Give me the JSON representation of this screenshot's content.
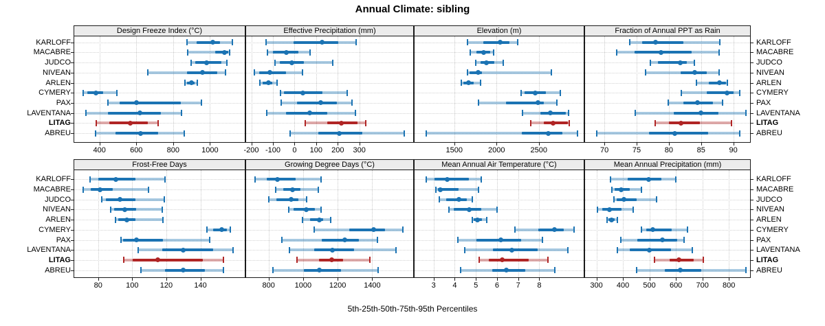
{
  "title": "Annual Climate: sibling",
  "caption": "5th-25th-50th-75th-95th Percentiles",
  "colors": {
    "sibling_blue": "#1b73b3",
    "target_red": "#b02525",
    "strip_bg": "#ececec",
    "grid_gray": "#c9c9c9",
    "panel_border": "#1a1a1a"
  },
  "stations": [
    {
      "name": "KARLOFF",
      "target": false
    },
    {
      "name": "MACABRE",
      "target": false
    },
    {
      "name": "JUDCO",
      "target": false
    },
    {
      "name": "NIVEAN",
      "target": false
    },
    {
      "name": "ARLEN",
      "target": false
    },
    {
      "name": "CYMERY",
      "target": false
    },
    {
      "name": "PAX",
      "target": false
    },
    {
      "name": "LAVENTANA",
      "target": false
    },
    {
      "name": "LITAG",
      "target": true
    },
    {
      "name": "ABREU",
      "target": false
    }
  ],
  "chart_data": {
    "type": "scatter",
    "subtype": "percentile-interval-dotplot",
    "percentile_labels": [
      "p5",
      "p25",
      "p50",
      "p75",
      "p95"
    ],
    "legend": "rows show 5th-95th range (light), 25th-75th (dark), median dot; LITAG highlighted",
    "grid": true,
    "panels": [
      {
        "label": "Design Freeze Index (°C)",
        "grid_row": 0,
        "grid_col": 0,
        "ticks": [
          400,
          600,
          800,
          1000
        ],
        "xlim": [
          263,
          1189
        ],
        "series": [
          {
            "name": "KARLOFF",
            "values": [
              877,
              926,
              1014,
              1055,
              1121
            ]
          },
          {
            "name": "MACABRE",
            "values": [
              880,
              1030,
              1080,
              1098,
              1107
            ]
          },
          {
            "name": "JUDCO",
            "values": [
              899,
              920,
              983,
              1063,
              1093
            ]
          },
          {
            "name": "NIVEAN",
            "values": [
              664,
              874,
              960,
              1040,
              1084
            ]
          },
          {
            "name": "ARLEN",
            "values": [
              865,
              874,
              899,
              917,
              932
            ]
          },
          {
            "name": "CYMERY",
            "values": [
              312,
              335,
              380,
              421,
              495
            ]
          },
          {
            "name": "PAX",
            "values": [
              446,
              510,
              602,
              840,
              952
            ]
          },
          {
            "name": "LAVENTANA",
            "values": [
              327,
              446,
              621,
              735,
              847
            ]
          },
          {
            "name": "LITAG",
            "values": [
              384,
              454,
              568,
              664,
              717
            ]
          },
          {
            "name": "ABREU",
            "values": [
              380,
              488,
              625,
              720,
              862
            ]
          }
        ]
      },
      {
        "label": "Effective Precipitation (mm)",
        "grid_row": 0,
        "grid_col": 1,
        "ticks": [
          -200,
          -100,
          0,
          100,
          200,
          300
        ],
        "xlim": [
          -224,
          549
        ],
        "series": [
          {
            "name": "KARLOFF",
            "values": [
              -133,
              -5,
              128,
              202,
              284
            ]
          },
          {
            "name": "MACABRE",
            "values": [
              -125,
              -101,
              -38,
              17,
              73
            ]
          },
          {
            "name": "JUDCO",
            "values": [
              -90,
              -67,
              -14,
              42,
              178
            ]
          },
          {
            "name": "NIVEAN",
            "values": [
              -186,
              -162,
              -115,
              -41,
              38
            ]
          },
          {
            "name": "ARLEN",
            "values": [
              -160,
              -149,
              -120,
              -104,
              -80
            ]
          },
          {
            "name": "CYMERY",
            "values": [
              -65,
              -48,
              38,
              128,
              244
            ]
          },
          {
            "name": "PAX",
            "values": [
              -62,
              10,
              120,
              195,
              265
            ]
          },
          {
            "name": "LAVENTANA",
            "values": [
              -130,
              -41,
              70,
              152,
              283
            ]
          },
          {
            "name": "LITAG",
            "values": [
              50,
              152,
              215,
              290,
              330
            ]
          },
          {
            "name": "ABREU",
            "values": [
              -20,
              110,
              207,
              313,
              508
            ]
          }
        ]
      },
      {
        "label": "Elevation (m)",
        "grid_row": 0,
        "grid_col": 2,
        "ticks": [
          1500,
          2000,
          2500
        ],
        "xlim": [
          1030,
          3030
        ],
        "series": [
          {
            "name": "KARLOFF",
            "values": [
              1657,
              1841,
              2045,
              2153,
              2253
            ]
          },
          {
            "name": "MACABRE",
            "values": [
              1688,
              1760,
              1850,
              1921,
              1963
            ]
          },
          {
            "name": "JUDCO",
            "values": [
              1755,
              1814,
              1882,
              1977,
              2080
            ]
          },
          {
            "name": "NIVEAN",
            "values": [
              1657,
              1679,
              1779,
              1828,
              2649
            ]
          },
          {
            "name": "ARLEN",
            "values": [
              1584,
              1611,
              1671,
              1733,
              1814
            ]
          },
          {
            "name": "CYMERY",
            "values": [
              2289,
              2329,
              2459,
              2587,
              2757
            ]
          },
          {
            "name": "PAX",
            "values": [
              1787,
              2112,
              2486,
              2560,
              2709
            ]
          },
          {
            "name": "LAVENTANA",
            "values": [
              2308,
              2519,
              2633,
              2817,
              2852
            ]
          },
          {
            "name": "LITAG",
            "values": [
              2405,
              2560,
              2668,
              2845,
              2858
            ]
          },
          {
            "name": "ABREU",
            "values": [
              1169,
              2297,
              2614,
              2776,
              2953
            ]
          }
        ]
      },
      {
        "label": "Fraction of Annual PPT as Rain",
        "grid_row": 0,
        "grid_col": 3,
        "ticks": [
          70,
          75,
          80,
          85,
          90
        ],
        "xlim": [
          67,
          92.6
        ],
        "series": [
          {
            "name": "KARLOFF",
            "values": [
              73.9,
              75.8,
              77.9,
              82.2,
              87.9
            ]
          },
          {
            "name": "MACABRE",
            "values": [
              71.9,
              74.7,
              78.8,
              83.5,
              87.8
            ]
          },
          {
            "name": "JUDCO",
            "values": [
              77.1,
              78.3,
              81.8,
              82.8,
              84.0
            ]
          },
          {
            "name": "NIVEAN",
            "values": [
              76.4,
              81.8,
              84.0,
              85.9,
              87.8
            ]
          },
          {
            "name": "ARLEN",
            "values": [
              84.3,
              86.2,
              87.9,
              88.9,
              89.1
            ]
          },
          {
            "name": "CYMERY",
            "values": [
              81.9,
              85.9,
              89.0,
              90.0,
              91.0
            ]
          },
          {
            "name": "PAX",
            "values": [
              79.9,
              82.2,
              84.4,
              86.8,
              88.3
            ]
          },
          {
            "name": "LAVENTANA",
            "values": [
              74.8,
              80.8,
              85.0,
              87.7,
              92.0
            ]
          },
          {
            "name": "LITAG",
            "values": [
              77.9,
              80.0,
              81.9,
              84.8,
              89.7
            ]
          },
          {
            "name": "ABREU",
            "values": [
              68.8,
              76.9,
              80.9,
              86.1,
              91.0
            ]
          }
        ]
      },
      {
        "label": "Frost-Free Days",
        "grid_row": 1,
        "grid_col": 0,
        "ticks": [
          80,
          100,
          120,
          140
        ],
        "xlim": [
          66,
          166
        ],
        "series": [
          {
            "name": "KARLOFF",
            "values": [
              75.3,
              80,
              90.5,
              102,
              119.3
            ]
          },
          {
            "name": "MACABRE",
            "values": [
              71.3,
              75.6,
              81,
              88.4,
              109.7
            ]
          },
          {
            "name": "JUDCO",
            "values": [
              82,
              84.7,
              92.7,
              102,
              119
            ]
          },
          {
            "name": "NIVEAN",
            "values": [
              87.3,
              89.3,
              95.6,
              102.3,
              117.7
            ]
          },
          {
            "name": "ARLEN",
            "values": [
              90.3,
              92,
              96.7,
              101.7,
              118
            ]
          },
          {
            "name": "CYMERY",
            "values": [
              143.7,
              147.3,
              152.4,
              155.6,
              157.7
            ]
          },
          {
            "name": "PAX",
            "values": [
              93.3,
              94.7,
              102.3,
              118,
              145.3
            ]
          },
          {
            "name": "LAVENTANA",
            "values": [
              103.3,
              117.7,
              130,
              147.6,
              159
            ]
          },
          {
            "name": "LITAG",
            "values": [
              95,
              100.4,
              115,
              141.3,
              153.3
            ]
          },
          {
            "name": "ABREU",
            "values": [
              105.3,
              119.3,
              130,
              142.7,
              153.7
            ]
          }
        ]
      },
      {
        "label": "Growing Degree Days (°C)",
        "grid_row": 1,
        "grid_col": 1,
        "ticks": [
          800,
          1000,
          1200,
          1400
        ],
        "xlim": [
          670,
          1637
        ],
        "series": [
          {
            "name": "KARLOFF",
            "values": [
              720,
              788,
              850,
              955,
              1102
            ]
          },
          {
            "name": "MACABRE",
            "values": [
              840,
              886,
              939,
              984,
              1086
            ]
          },
          {
            "name": "JUDCO",
            "values": [
              801,
              847,
              932,
              974,
              1021
            ]
          },
          {
            "name": "NIVEAN",
            "values": [
              916,
              945,
              1017,
              1069,
              1102
            ]
          },
          {
            "name": "ARLEN",
            "values": [
              997,
              1039,
              1095,
              1115,
              1158
            ]
          },
          {
            "name": "CYMERY",
            "values": [
              1063,
              1265,
              1407,
              1472,
              1577
            ]
          },
          {
            "name": "PAX",
            "values": [
              877,
              1106,
              1242,
              1324,
              1429
            ]
          },
          {
            "name": "LAVENTANA",
            "values": [
              919,
              1063,
              1170,
              1295,
              1536
            ]
          },
          {
            "name": "LITAG",
            "values": [
              965,
              1092,
              1167,
              1230,
              1387
            ]
          },
          {
            "name": "ABREU",
            "values": [
              827,
              1004,
              1093,
              1220,
              1435
            ]
          }
        ]
      },
      {
        "label": "Mean Annual Air Temperature (°C)",
        "grid_row": 1,
        "grid_col": 2,
        "ticks": [
          3,
          4,
          5,
          6,
          7,
          8
        ],
        "xlim": [
          2.1,
          10.1
        ],
        "series": [
          {
            "name": "KARLOFF",
            "values": [
              2.64,
              3.04,
              3.65,
              4.67,
              5.26
            ]
          },
          {
            "name": "MACABRE",
            "values": [
              3.12,
              3.22,
              3.33,
              4.19,
              5.12
            ]
          },
          {
            "name": "JUDCO",
            "values": [
              3.26,
              3.6,
              4.21,
              4.56,
              4.83
            ]
          },
          {
            "name": "NIVEAN",
            "values": [
              3.73,
              3.94,
              4.67,
              5.26,
              6.0
            ]
          },
          {
            "name": "ARLEN",
            "values": [
              4.83,
              4.9,
              5.07,
              5.29,
              5.5
            ]
          },
          {
            "name": "CYMERY",
            "values": [
              6.86,
              7.96,
              8.73,
              9.16,
              9.64
            ]
          },
          {
            "name": "PAX",
            "values": [
              4.16,
              5.04,
              6.17,
              7.13,
              8.14
            ]
          },
          {
            "name": "LAVENTANA",
            "values": [
              4.48,
              5.82,
              6.7,
              7.93,
              9.35
            ]
          },
          {
            "name": "LITAG",
            "values": [
              5.15,
              5.61,
              6.25,
              7.5,
              8.41
            ]
          },
          {
            "name": "ABREU",
            "values": [
              4.29,
              5.79,
              6.43,
              7.34,
              8.73
            ]
          }
        ]
      },
      {
        "label": "Mean Annual Precipitation (mm)",
        "grid_row": 1,
        "grid_col": 3,
        "ticks": [
          300,
          400,
          500,
          600,
          700,
          800
        ],
        "xlim": [
          257,
          880
        ],
        "series": [
          {
            "name": "KARLOFF",
            "values": [
              354,
              419,
              496,
              545,
              599
            ]
          },
          {
            "name": "MACABRE",
            "values": [
              359,
              369,
              393,
              425,
              470
            ]
          },
          {
            "name": "JUDCO",
            "values": [
              365,
              376,
              404,
              453,
              528
            ]
          },
          {
            "name": "NIVEAN",
            "values": [
              303,
              322,
              348,
              395,
              438
            ]
          },
          {
            "name": "ARLEN",
            "values": [
              339,
              345,
              357,
              368,
              380
            ]
          },
          {
            "name": "CYMERY",
            "values": [
              471,
              488,
              513,
              584,
              644
            ]
          },
          {
            "name": "PAX",
            "values": [
              391,
              455,
              548,
              605,
              631
            ]
          },
          {
            "name": "LAVENTANA",
            "values": [
              378,
              425,
              501,
              582,
              661
            ]
          },
          {
            "name": "LITAG",
            "values": [
              519,
              575,
              612,
              668,
              704
            ]
          },
          {
            "name": "ABREU",
            "values": [
              451,
              558,
              616,
              695,
              865
            ]
          }
        ]
      }
    ]
  }
}
